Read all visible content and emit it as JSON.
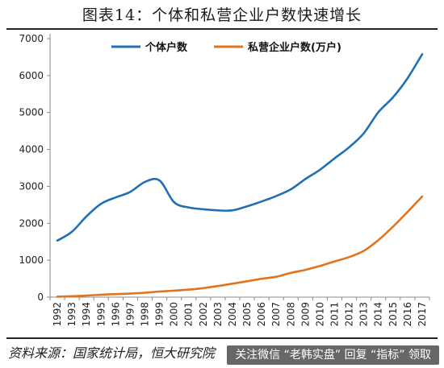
{
  "header": {
    "title": "图表14：个体和私营企业户数快速增长"
  },
  "footer": {
    "source": "资料来源：国家统计局，恒大研究院",
    "watermark": "关注微信 “老韩实盘” 回复 “指标” 领取"
  },
  "chart_data": {
    "type": "line",
    "x": [
      "1992",
      "1993",
      "1994",
      "1995",
      "1996",
      "1997",
      "1998",
      "1999",
      "2000",
      "2001",
      "2002",
      "2003",
      "2004",
      "2005",
      "2006",
      "2007",
      "2008",
      "2009",
      "2010",
      "2011",
      "2012",
      "2013",
      "2014",
      "2015",
      "2016",
      "2017"
    ],
    "series": [
      {
        "name": "个体户数",
        "color": "#1f6fb5",
        "values": [
          1530,
          1770,
          2190,
          2530,
          2700,
          2850,
          3120,
          3160,
          2570,
          2430,
          2380,
          2350,
          2350,
          2460,
          2590,
          2740,
          2920,
          3200,
          3450,
          3760,
          4060,
          4440,
          5010,
          5410,
          5930,
          6580
        ]
      },
      {
        "name": "私营企业户数(万户)",
        "color": "#e0741e",
        "values": [
          14,
          24,
          43,
          65,
          82,
          96,
          120,
          151,
          176,
          203,
          244,
          301,
          365,
          430,
          498,
          551,
          657,
          740,
          845,
          968,
          1086,
          1254,
          1546,
          1908,
          2310,
          2726
        ]
      }
    ],
    "ylim": [
      0,
      7000
    ],
    "yticks": [
      0,
      1000,
      2000,
      3000,
      4000,
      5000,
      6000,
      7000
    ],
    "legend": "top-center"
  }
}
